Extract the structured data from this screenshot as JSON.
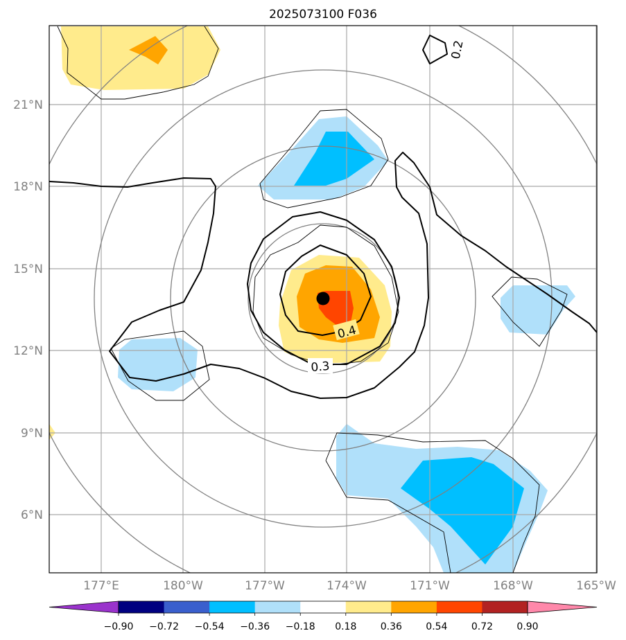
{
  "title": "2025073100 F036",
  "chart_data": {
    "type": "contour-map",
    "title": "2025073100 F036",
    "x_ticks": [
      "177°E",
      "180°W",
      "177°W",
      "174°W",
      "171°W",
      "168°W",
      "165°W"
    ],
    "y_ticks": [
      "21°N",
      "18°N",
      "15°N",
      "12°N",
      "9°N",
      "6°N"
    ],
    "x_range_lon": [
      175.1,
      195.0
    ],
    "y_range_lat": [
      3.9,
      23.8
    ],
    "center": {
      "lon": 184.9,
      "lat": 13.85
    },
    "line_contours": [
      {
        "label": "0.4",
        "level": 0.4
      },
      {
        "label": "0.3",
        "level": 0.3
      },
      {
        "label": "0.2",
        "level": 0.2
      }
    ],
    "colorbar": {
      "ticks": [
        "−0.90",
        "−0.72",
        "−0.54",
        "−0.36",
        "−0.18",
        "0.18",
        "0.36",
        "0.54",
        "0.72",
        "0.90"
      ],
      "colors": [
        "#9a33cc",
        "#000080",
        "#3a5fcd",
        "#00bfff",
        "#b0e0fa",
        "#ffffff",
        "#ffeb8c",
        "#ffa500",
        "#ff4500",
        "#b22222",
        "#ff88aa"
      ]
    }
  }
}
